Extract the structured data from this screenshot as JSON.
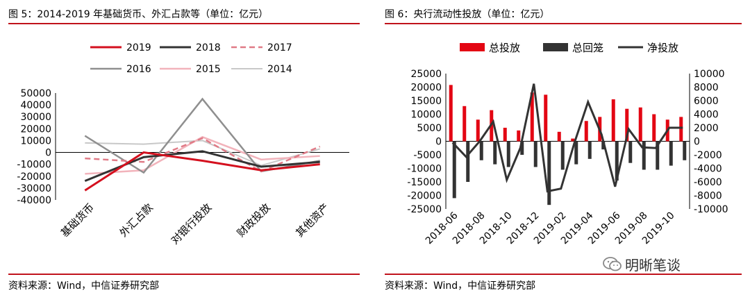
{
  "left": {
    "title": "图 5：2014-2019 年基础货币、外汇占款等（单位：亿元）",
    "source": "资料来源：Wind，中信证券研究部"
  },
  "right": {
    "title": "图 6：央行流动性投放（单位：亿元）",
    "source": "资料来源：Wind，中信证券研究部"
  },
  "watermark": {
    "text": "明晰笔谈",
    "icon": "wechat-icon"
  },
  "colors": {
    "accent": "#c0121b"
  },
  "chart_data": [
    {
      "type": "line",
      "categories": [
        "基础货币",
        "外汇占款",
        "对银行投放",
        "财政投放",
        "其他资产"
      ],
      "ylim": [
        -40000,
        50000
      ],
      "yticks": [
        50000,
        40000,
        30000,
        20000,
        10000,
        0,
        -10000,
        -20000,
        -30000,
        -40000
      ],
      "legend": "top",
      "series": [
        {
          "name": "2019",
          "color": "#d4101e",
          "dash": "",
          "width": 3,
          "values": [
            -32000,
            0,
            -7000,
            -15000,
            -10000
          ]
        },
        {
          "name": "2018",
          "color": "#333333",
          "dash": "",
          "width": 3,
          "values": [
            -24000,
            -4000,
            1000,
            -12000,
            -8000
          ]
        },
        {
          "name": "2017",
          "color": "#e07a86",
          "dash": "8,5",
          "width": 2.5,
          "values": [
            -5000,
            -8000,
            12000,
            -16000,
            5000
          ]
        },
        {
          "name": "2016",
          "color": "#8f8f8f",
          "dash": "",
          "width": 2.5,
          "values": [
            14000,
            -17000,
            45000,
            -16000,
            -7000
          ]
        },
        {
          "name": "2015",
          "color": "#f2b3bb",
          "dash": "",
          "width": 2.5,
          "values": [
            -18000,
            -15000,
            13000,
            -6000,
            -3000
          ]
        },
        {
          "name": "2014",
          "color": "#c8c8c8",
          "dash": "",
          "width": 2,
          "values": [
            8000,
            7000,
            10000,
            -11000,
            3000
          ]
        }
      ]
    },
    {
      "type": "bar+line",
      "categories": [
        "2018-06",
        "2018-07",
        "2018-08",
        "2018-09",
        "2018-10",
        "2018-11",
        "2018-12",
        "2019-01",
        "2019-02",
        "2019-03",
        "2019-04",
        "2019-05",
        "2019-06",
        "2019-07",
        "2019-08",
        "2019-09",
        "2019-10",
        "2019-11"
      ],
      "xticklabels": [
        "2018-06",
        "2018-08",
        "2018-10",
        "2018-12",
        "2019-02",
        "2019-04",
        "2019-06",
        "2019-08",
        "2019-10"
      ],
      "ylim_left": [
        -25000,
        25000
      ],
      "ylim_right": [
        -10000,
        10000
      ],
      "yticks_left": [
        25000,
        20000,
        15000,
        10000,
        5000,
        0,
        -5000,
        -10000,
        -15000,
        -20000,
        -25000
      ],
      "yticks_right": [
        10000,
        8000,
        6000,
        4000,
        2000,
        0,
        -2000,
        -4000,
        -6000,
        -8000,
        -10000
      ],
      "legend": "top",
      "series": [
        {
          "name": "总投放",
          "type": "bar",
          "axis": "left",
          "color": "#e30613",
          "values": [
            20800,
            13000,
            8000,
            11500,
            5000,
            4000,
            18000,
            17200,
            3500,
            1000,
            7500,
            9000,
            15500,
            12000,
            12500,
            10000,
            8000,
            9000
          ]
        },
        {
          "name": "总回笼",
          "type": "bar",
          "axis": "left",
          "color": "#333333",
          "values": [
            -21000,
            -15000,
            -7000,
            -8500,
            -9500,
            -5000,
            -9500,
            -23500,
            -10500,
            -8500,
            -6500,
            -3000,
            -14500,
            -8000,
            -10500,
            -10500,
            -9000,
            -7000
          ]
        },
        {
          "name": "净投放",
          "type": "line",
          "axis": "right",
          "color": "#333333",
          "values": [
            -200,
            -2300,
            0,
            2900,
            -5700,
            -1000,
            8500,
            -7400,
            -7000,
            -200,
            5800,
            1000,
            -6700,
            1800,
            -900,
            -1000,
            2000,
            2000
          ]
        }
      ]
    }
  ]
}
